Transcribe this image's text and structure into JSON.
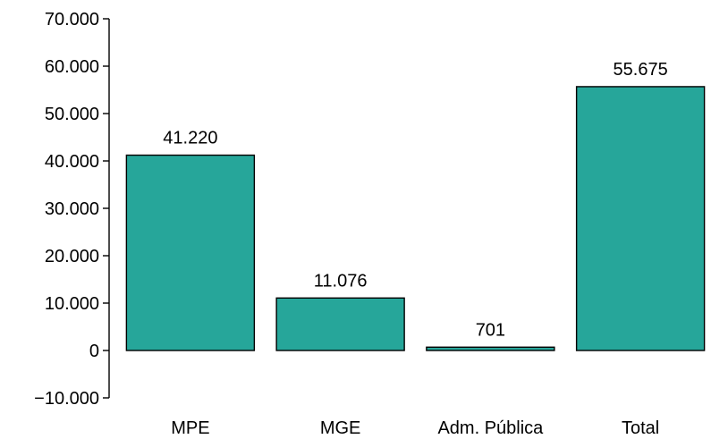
{
  "chart_data": {
    "type": "bar",
    "categories": [
      "MPE",
      "MGE",
      "Adm. Pública",
      "Total"
    ],
    "values": [
      41220,
      11076,
      701,
      55675
    ],
    "value_labels": [
      "41.220",
      "11.076",
      "701",
      "55.675"
    ],
    "title": "",
    "xlabel": "",
    "ylabel": "",
    "ylim": [
      -10000,
      70000
    ],
    "yticks": [
      -10000,
      0,
      10000,
      20000,
      30000,
      40000,
      50000,
      60000,
      70000
    ],
    "ytick_labels": [
      "−10.000",
      "0",
      "10.000",
      "20.000",
      "30.000",
      "40.000",
      "50.000",
      "60.000",
      "70.000"
    ],
    "grid": false,
    "legend": "none",
    "bar_color": "#26a69a",
    "bar_edge_color": "#000000"
  }
}
